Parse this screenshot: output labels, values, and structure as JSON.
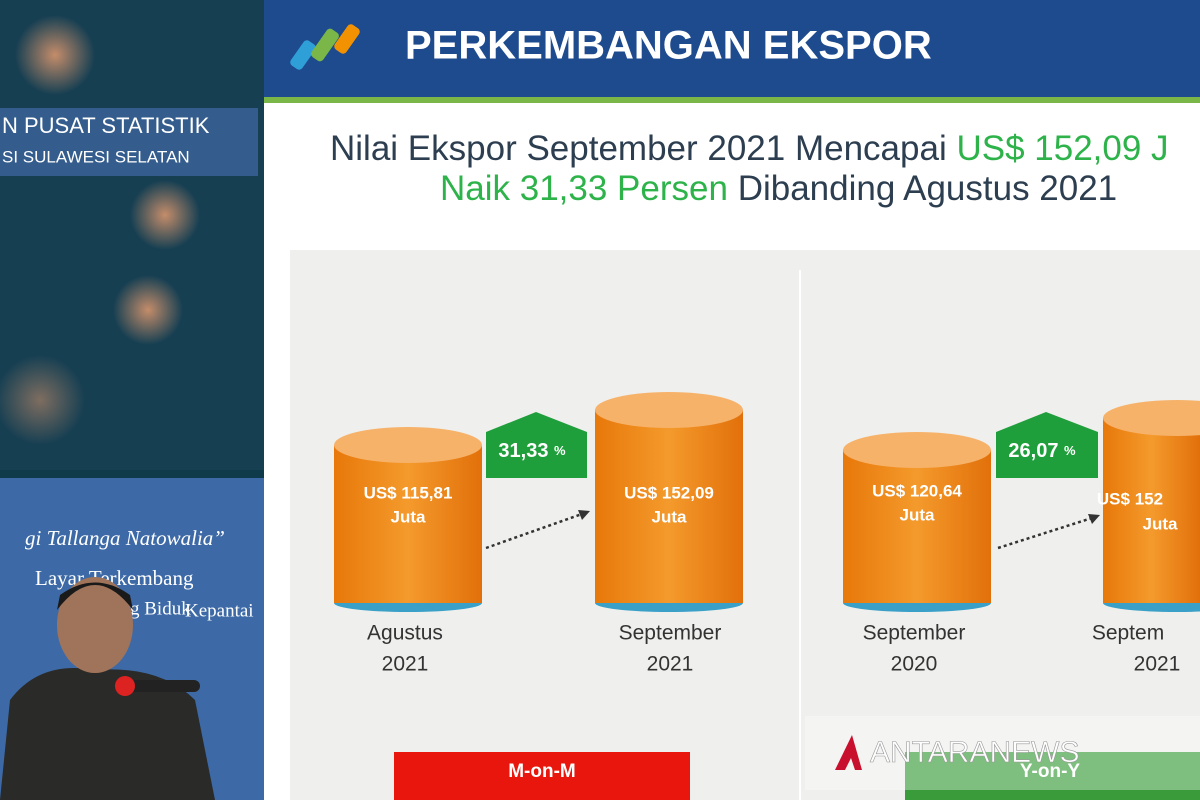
{
  "sidebar": {
    "org_line1": "N PUSAT STATISTIK",
    "org_line2": "SI SULAWESI SELATAN",
    "poem": [
      "gi Tallanga Natowalia”",
      "Layar Terkembang",
      "g Biduk",
      "Kepantai"
    ]
  },
  "header": {
    "title": "PERKEMBANGAN EKSPOR"
  },
  "headline": {
    "line1_prefix": "Nilai Ekspor September 2021 Mencapai",
    "line1_highlight": "US$ 152,09 J",
    "line2_highlight": "Naik 31,33 Persen",
    "line2_suffix": "Dibanding Agustus 2021"
  },
  "panels": [
    {
      "change": "31,33",
      "change_unit": "%",
      "label": "M-on-M",
      "bars": [
        {
          "value": "US$ 115,81",
          "unit": "Juta",
          "period": "Agustus",
          "year": "2021"
        },
        {
          "value": "US$ 152,09",
          "unit": "Juta",
          "period": "September",
          "year": "2021"
        }
      ]
    },
    {
      "change": "26,07",
      "change_unit": "%",
      "label": "Y-on-Y",
      "bars": [
        {
          "value": "US$ 120,64",
          "unit": "Juta",
          "period": "September",
          "year": "2020"
        },
        {
          "value": "US$ 152",
          "unit": "Juta",
          "period": "Septem",
          "year": "2021"
        }
      ]
    }
  ],
  "watermark": "ANTARANEWS"
}
